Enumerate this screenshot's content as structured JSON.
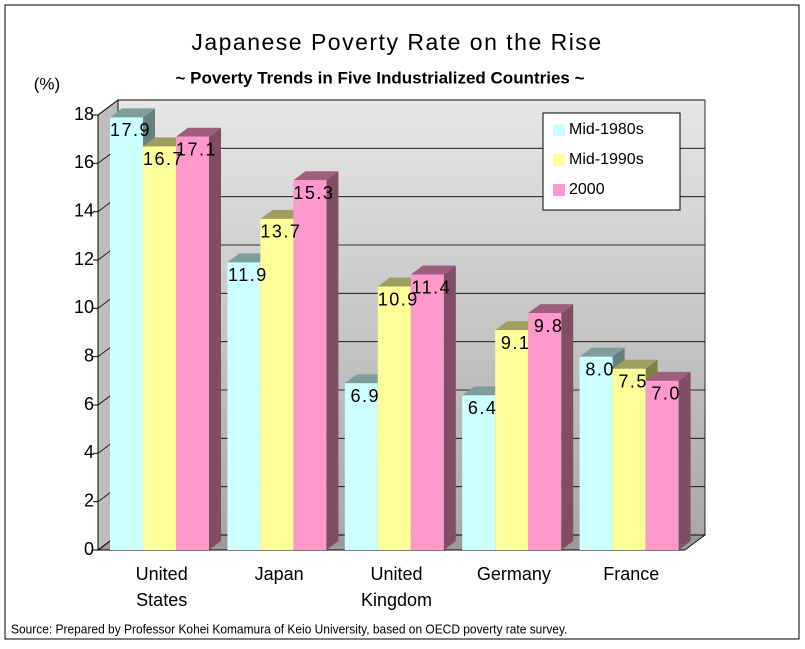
{
  "chart_data": {
    "type": "bar3d",
    "title": "Japanese Poverty Rate on the Rise",
    "subtitle": "~ Poverty Trends in Five Industrialized Countries ~",
    "y_label": "(%)",
    "source": "Source: Prepared by Professor Kohei Komamura of Keio University, based on OECD poverty rate survey.",
    "categories": [
      "United States",
      "Japan",
      "United Kingdom",
      "Germany",
      "France"
    ],
    "series": [
      {
        "name": "Mid-1980s",
        "color": "#ccffff",
        "values": [
          17.9,
          11.9,
          6.9,
          6.4,
          8.0
        ],
        "value_labels": [
          "17.9",
          "11.9",
          "6.9",
          "6.4",
          "8.0"
        ]
      },
      {
        "name": "Mid-1990s",
        "color": "#ffff99",
        "values": [
          16.7,
          13.7,
          10.9,
          9.1,
          7.5
        ],
        "value_labels": [
          "16.7",
          "13.7",
          "10.9",
          "9.1",
          "7.5"
        ]
      },
      {
        "name": "2000",
        "color": "#ff99cc",
        "values": [
          17.1,
          15.3,
          11.4,
          9.8,
          7.0
        ],
        "value_labels": [
          "17.1",
          "15.3",
          "11.4",
          "9.8",
          "7.0"
        ]
      }
    ],
    "ylim": [
      0,
      18
    ],
    "yticks": [
      0,
      2,
      4,
      6,
      8,
      10,
      12,
      14,
      16,
      18
    ],
    "grid": true,
    "legend": "upper right"
  }
}
